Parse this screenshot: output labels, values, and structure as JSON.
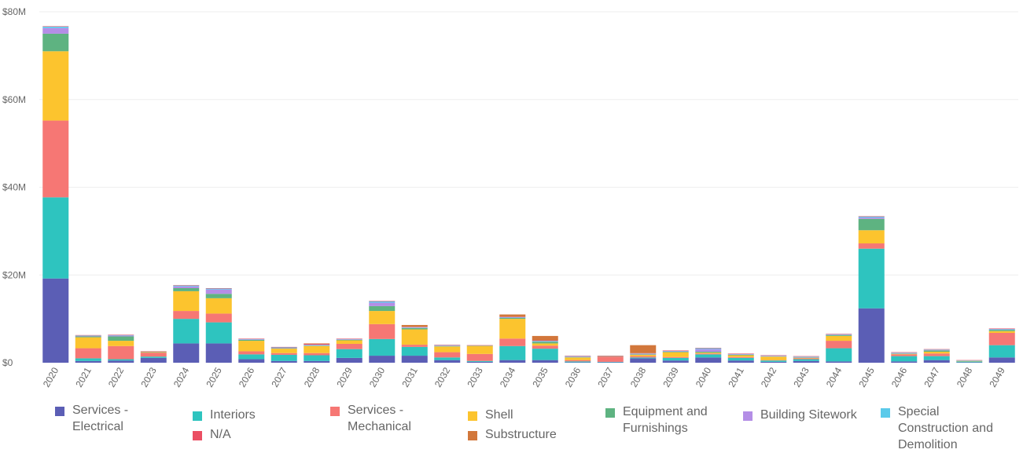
{
  "chart_data": {
    "type": "bar",
    "stacked": true,
    "title": "",
    "xlabel": "",
    "ylabel": "",
    "ylim": [
      0,
      80
    ],
    "yticks": [
      "$0",
      "$20M",
      "$40M",
      "$60M",
      "$80M"
    ],
    "ytick_values": [
      0,
      20,
      40,
      60,
      80
    ],
    "unit": "$M",
    "grid": true,
    "legend_position": "bottom",
    "categories": [
      "2020",
      "2021",
      "2022",
      "2023",
      "2024",
      "2025",
      "2026",
      "2027",
      "2028",
      "2029",
      "2030",
      "2031",
      "2032",
      "2033",
      "2034",
      "2035",
      "2036",
      "2037",
      "2038",
      "2039",
      "2040",
      "2041",
      "2042",
      "2043",
      "2044",
      "2045",
      "2046",
      "2047",
      "2048",
      "2049"
    ],
    "series": [
      {
        "name": "Services - Electrical",
        "color": "#5b5eb5",
        "values": [
          19.2,
          0.4,
          0.5,
          1.1,
          4.4,
          4.4,
          0.8,
          0.4,
          0.4,
          1.1,
          1.6,
          1.6,
          0.6,
          0.2,
          0.6,
          0.6,
          0.1,
          0.1,
          1.0,
          0.5,
          1.2,
          0.5,
          0.2,
          0.4,
          0.3,
          12.4,
          0.3,
          0.6,
          0.1,
          1.2
        ]
      },
      {
        "name": "Interiors",
        "color": "#2ec4bf",
        "values": [
          18.5,
          0.6,
          0.3,
          0.3,
          5.6,
          4.8,
          1.1,
          1.4,
          1.3,
          2.0,
          3.8,
          2.0,
          0.6,
          0.2,
          3.2,
          2.6,
          0.2,
          0.1,
          0.2,
          0.6,
          0.7,
          0.6,
          0.3,
          0.4,
          3.0,
          13.6,
          1.2,
          0.9,
          0.2,
          2.8
        ]
      },
      {
        "name": "Services - Mechanical",
        "color": "#f67774",
        "values": [
          17.5,
          2.3,
          3.0,
          0.9,
          1.8,
          2.0,
          0.7,
          0.4,
          0.5,
          1.2,
          3.4,
          0.5,
          1.2,
          1.6,
          1.7,
          0.7,
          0.3,
          1.2,
          0.3,
          0.2,
          0.2,
          0.2,
          0.1,
          0.2,
          1.7,
          1.2,
          0.4,
          0.6,
          0.0,
          2.8
        ]
      },
      {
        "name": "Shell",
        "color": "#fcc42e",
        "values": [
          15.8,
          2.5,
          1.2,
          0.1,
          4.5,
          3.5,
          2.4,
          1.0,
          1.6,
          0.8,
          3.0,
          3.5,
          1.3,
          1.8,
          4.5,
          0.5,
          0.6,
          0.0,
          0.3,
          1.1,
          0.2,
          0.4,
          0.8,
          0.1,
          1.1,
          3.0,
          0.1,
          0.4,
          0.1,
          0.4
        ]
      },
      {
        "name": "Equipment and Furnishings",
        "color": "#5eb381",
        "values": [
          4.0,
          0.2,
          1.0,
          0.1,
          0.7,
          1.0,
          0.2,
          0.1,
          0.1,
          0.1,
          1.1,
          0.3,
          0.1,
          0.1,
          0.2,
          0.4,
          0.1,
          0.1,
          0.1,
          0.1,
          0.2,
          0.1,
          0.0,
          0.1,
          0.2,
          2.6,
          0.1,
          0.3,
          0.0,
          0.3
        ]
      },
      {
        "name": "Building Sitework",
        "color": "#b48ee6",
        "values": [
          1.3,
          0.1,
          0.2,
          0.0,
          0.4,
          1.0,
          0.1,
          0.1,
          0.1,
          0.1,
          0.8,
          0.1,
          0.1,
          0.0,
          0.1,
          0.1,
          0.1,
          0.0,
          0.1,
          0.1,
          0.6,
          0.1,
          0.1,
          0.1,
          0.1,
          0.3,
          0.1,
          0.1,
          0.0,
          0.1
        ]
      },
      {
        "name": "Special Construction and Demolition",
        "color": "#5bcaea",
        "values": [
          0.3,
          0.1,
          0.1,
          0.0,
          0.2,
          0.2,
          0.1,
          0.1,
          0.1,
          0.1,
          0.3,
          0.1,
          0.1,
          0.0,
          0.1,
          0.1,
          0.1,
          0.0,
          0.1,
          0.1,
          0.2,
          0.1,
          0.1,
          0.1,
          0.1,
          0.2,
          0.1,
          0.1,
          0.1,
          0.1
        ]
      },
      {
        "name": "N/A",
        "color": "#eb4f63",
        "values": [
          0.1,
          0.1,
          0.1,
          0.1,
          0.1,
          0.1,
          0.1,
          0.1,
          0.2,
          0.1,
          0.1,
          0.1,
          0.1,
          0.1,
          0.1,
          0.1,
          0.1,
          0.1,
          0.1,
          0.1,
          0.1,
          0.1,
          0.1,
          0.1,
          0.1,
          0.1,
          0.1,
          0.1,
          0.1,
          0.1
        ]
      },
      {
        "name": "Substructure",
        "color": "#d2773b",
        "values": [
          0.0,
          0.0,
          0.0,
          0.0,
          0.0,
          0.0,
          0.0,
          0.0,
          0.1,
          0.0,
          0.0,
          0.4,
          0.0,
          0.0,
          0.5,
          1.0,
          0.0,
          0.0,
          1.8,
          0.0,
          0.0,
          0.0,
          0.0,
          0.0,
          0.0,
          0.0,
          0.0,
          0.0,
          0.0,
          0.0
        ]
      }
    ]
  },
  "legend": {
    "items": [
      {
        "label": "Services -\nElectrical",
        "color": "#5b5eb5"
      },
      {
        "label": "Interiors",
        "color": "#2ec4bf"
      },
      {
        "label": "N/A",
        "color": "#eb4f63"
      },
      {
        "label": "Services -\nMechanical",
        "color": "#f67774"
      },
      {
        "label": "Shell",
        "color": "#fcc42e"
      },
      {
        "label": "Substructure",
        "color": "#d2773b"
      },
      {
        "label": "Equipment and\nFurnishings",
        "color": "#5eb381"
      },
      {
        "label": "Building Sitework",
        "color": "#b48ee6"
      },
      {
        "label": "Special\nConstruction and\nDemolition",
        "color": "#5bcaea"
      }
    ]
  }
}
